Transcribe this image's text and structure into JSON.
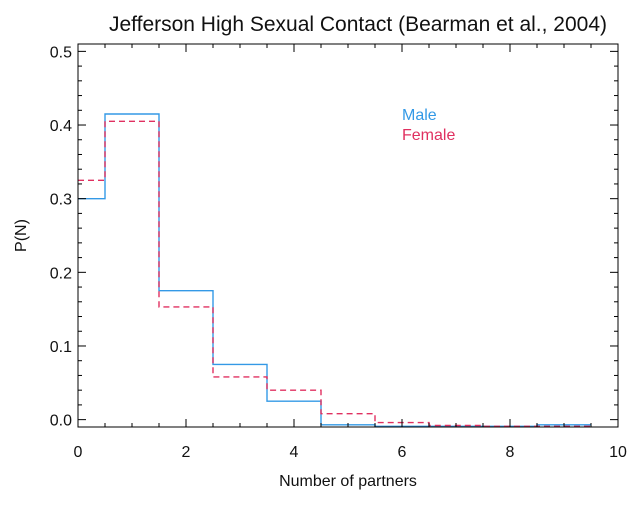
{
  "chart_data": {
    "type": "line",
    "step": true,
    "title": "Jefferson High Sexual Contact (Bearman et al., 2004)",
    "xlabel": "Number of partners",
    "ylabel": "P(N)",
    "xlim": [
      0,
      10
    ],
    "ylim": [
      -0.01,
      0.51
    ],
    "xticks": [
      0,
      2,
      4,
      6,
      8,
      10
    ],
    "xtick_labels": [
      "0",
      "2",
      "4",
      "6",
      "8",
      "10"
    ],
    "yticks": [
      0.0,
      0.1,
      0.2,
      0.3,
      0.4,
      0.5
    ],
    "ytick_labels": [
      "0.0",
      "0.1",
      "0.2",
      "0.3",
      "0.4",
      "0.5"
    ],
    "grid": false,
    "legend_position": "top-right",
    "series": [
      {
        "name": "Male",
        "color": "#3399e6",
        "style": "solid",
        "x": [
          0,
          1,
          2,
          3,
          4,
          5,
          6,
          7,
          8,
          9
        ],
        "y": [
          0.3,
          0.415,
          0.175,
          0.075,
          0.025,
          -0.007,
          -0.009,
          -0.009,
          -0.009,
          -0.007
        ]
      },
      {
        "name": "Female",
        "color": "#e03060",
        "style": "dashed",
        "x": [
          0,
          1,
          2,
          3,
          4,
          5,
          6,
          7,
          8,
          9
        ],
        "y": [
          0.325,
          0.405,
          0.153,
          0.058,
          0.04,
          0.008,
          -0.004,
          -0.008,
          -0.009,
          -0.009
        ]
      }
    ]
  }
}
